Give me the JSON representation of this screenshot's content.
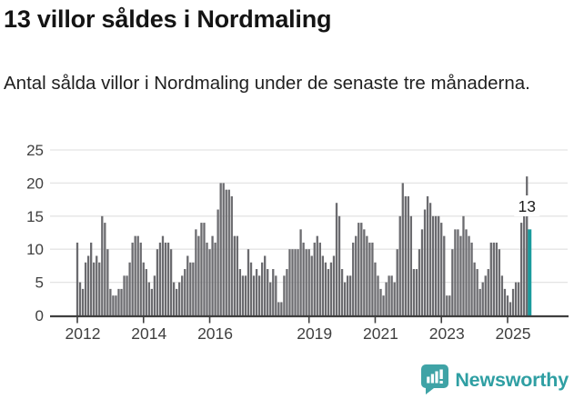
{
  "header": {
    "title": "13 villor såldes i Nordmaling",
    "subtitle": "Antal sålda villor i Nordmaling under de senaste tre månaderna."
  },
  "chart_data": {
    "type": "bar",
    "title": "13 villor såldes i Nordmaling",
    "subtitle": "Antal sålda villor i Nordmaling under de senaste tre månaderna.",
    "x_start": "2012-01",
    "x_frequency": "monthly",
    "values": [
      11,
      5,
      4,
      8,
      9,
      11,
      8,
      9,
      8,
      15,
      14,
      10,
      4,
      3,
      3,
      4,
      4,
      6,
      6,
      8,
      11,
      12,
      12,
      11,
      8,
      7,
      5,
      4,
      6,
      10,
      11,
      12,
      11,
      11,
      10,
      5,
      4,
      5,
      6,
      7,
      9,
      8,
      8,
      13,
      12,
      14,
      14,
      11,
      10,
      12,
      11,
      16,
      20,
      20,
      19,
      19,
      18,
      12,
      12,
      7,
      6,
      6,
      10,
      8,
      6,
      7,
      6,
      8,
      9,
      7,
      5,
      7,
      6,
      2,
      2,
      6,
      7,
      10,
      10,
      10,
      10,
      13,
      11,
      10,
      10,
      9,
      11,
      12,
      11,
      9,
      8,
      7,
      8,
      9,
      17,
      15,
      7,
      5,
      6,
      6,
      11,
      12,
      14,
      14,
      13,
      12,
      11,
      11,
      8,
      6,
      4,
      3,
      5,
      6,
      6,
      5,
      10,
      15,
      20,
      18,
      18,
      15,
      7,
      7,
      10,
      13,
      16,
      18,
      17,
      15,
      15,
      15,
      14,
      12,
      3,
      3,
      10,
      13,
      13,
      12,
      15,
      13,
      12,
      11,
      8,
      7,
      4,
      5,
      6,
      7,
      11,
      11,
      11,
      10,
      6,
      4,
      3,
      2,
      4,
      5,
      5,
      14,
      15,
      21,
      13
    ],
    "highlight": {
      "index": 164,
      "value": 13,
      "label": "13",
      "color": "#1a9b9d"
    },
    "y_ticks": [
      0,
      5,
      10,
      15,
      20,
      25
    ],
    "ylim": [
      0,
      26
    ],
    "x_tick_years": [
      {
        "label": "2012",
        "month_index": 0
      },
      {
        "label": "2014",
        "month_index": 24
      },
      {
        "label": "2016",
        "month_index": 48
      },
      {
        "label": "2019",
        "month_index": 84
      },
      {
        "label": "2021",
        "month_index": 108
      },
      {
        "label": "2023",
        "month_index": 132
      },
      {
        "label": "2025",
        "month_index": 156
      }
    ],
    "grid": true,
    "legend": "none",
    "bar_color": "#6b6b6f",
    "axis_color": "#3f3f3f",
    "gridline_color": "#e4e4e4",
    "label_color": "#404040",
    "annotation_text_color": "#1d1d1d"
  },
  "footer": {
    "brand": "Newsworthy",
    "brand_color": "#2f9fa3",
    "logo_icon": "newsworthy-speech-bubble-chart-icon"
  }
}
